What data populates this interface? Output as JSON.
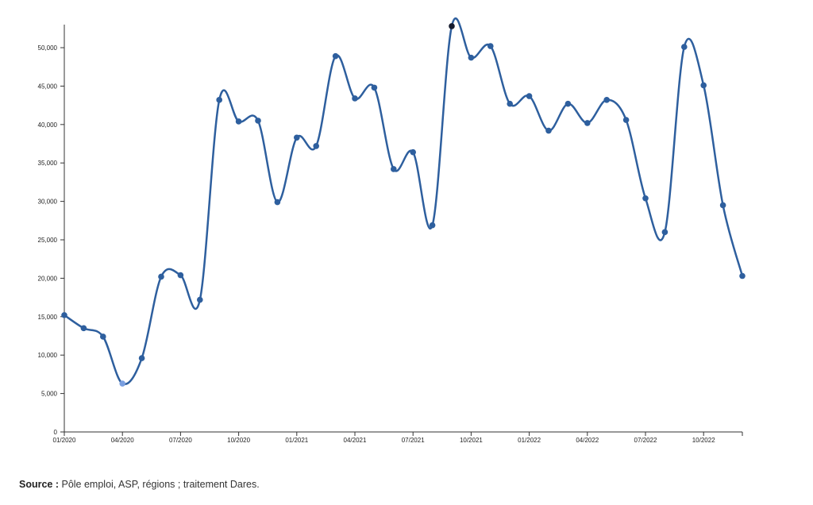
{
  "chart_data": {
    "type": "line",
    "x": [
      "01/2020",
      "02/2020",
      "03/2020",
      "04/2020",
      "05/2020",
      "06/2020",
      "07/2020",
      "08/2020",
      "09/2020",
      "10/2020",
      "11/2020",
      "12/2020",
      "01/2021",
      "02/2021",
      "03/2021",
      "04/2021",
      "05/2021",
      "06/2021",
      "07/2021",
      "08/2021",
      "09/2021",
      "10/2021",
      "11/2021",
      "12/2021",
      "01/2022",
      "02/2022",
      "03/2022",
      "04/2022",
      "05/2022",
      "06/2022",
      "07/2022",
      "08/2022",
      "09/2022",
      "10/2022",
      "11/2022",
      "12/2022"
    ],
    "values": [
      15200,
      13500,
      12400,
      6300,
      9600,
      20200,
      20400,
      17200,
      43200,
      40400,
      40500,
      29900,
      38300,
      37200,
      48900,
      43400,
      44800,
      34200,
      36400,
      26900,
      52800,
      48700,
      50200,
      42700,
      43700,
      39200,
      42700,
      40200,
      43200,
      40600,
      30400,
      26000,
      50100,
      45100,
      29500,
      20300
    ],
    "x_ticks": [
      "01/2020",
      "04/2020",
      "07/2020",
      "10/2020",
      "01/2021",
      "04/2021",
      "07/2021",
      "10/2021",
      "01/2022",
      "04/2022",
      "07/2022",
      "10/2022"
    ],
    "y_ticks": [
      "0",
      "5,000",
      "10,000",
      "15,000",
      "20,000",
      "25,000",
      "30,000",
      "35,000",
      "40,000",
      "45,000",
      "50,000"
    ],
    "ylim": [
      0,
      53000
    ],
    "line_color": "#2e5f9e",
    "highlight_low_color": "#7a9fe0",
    "highlight_high_color": "#141a2e",
    "grid": false
  },
  "footer": {
    "source_label": "Source :",
    "source_text": " Pôle emploi, ASP, régions ; traitement Dares."
  }
}
